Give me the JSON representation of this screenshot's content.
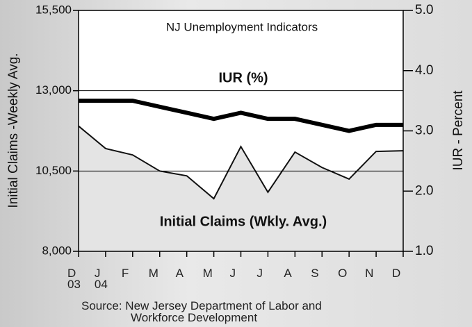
{
  "chart_data": {
    "type": "line",
    "title": "NJ Unemployment Indicators",
    "ylabel": "Initial Claims -Weekly Avg.",
    "y2label": "IUR - Percent",
    "annotations": [
      "IUR (%)",
      "Initial Claims (Wkly. Avg.)"
    ],
    "source": [
      "Source: New Jersey Department of Labor and",
      "Workforce Development"
    ],
    "categories": [
      "D\n03",
      "J\n04",
      "F",
      "M",
      "A",
      "M",
      "J",
      "J",
      "A",
      "S",
      "O",
      "N",
      "D"
    ],
    "series": [
      {
        "name": "Initial Claims (Wkly. Avg.)",
        "color": "#111111",
        "fill": "#e4e4e4",
        "values": [
          11900,
          11200,
          11000,
          10500,
          10350,
          9640,
          11260,
          9840,
          11090,
          10610,
          10250,
          11110,
          11130
        ]
      },
      {
        "name": "IUR (%)",
        "color": "#000000",
        "axis": "y2",
        "values": [
          3.5,
          3.5,
          3.5,
          3.4,
          3.3,
          3.2,
          3.3,
          3.2,
          3.2,
          3.1,
          3.0,
          3.1,
          3.1
        ]
      }
    ],
    "ylim": [
      8000,
      15500
    ],
    "yticks": [
      {
        "value": 8000,
        "label": "8,000"
      },
      {
        "value": 10500,
        "label": "10,500"
      },
      {
        "value": 13000,
        "label": "13,000"
      },
      {
        "value": 15500,
        "label": "15,500"
      }
    ],
    "y2lim": [
      1,
      5
    ],
    "y2ticks": [
      {
        "value": 1,
        "label": "1.0"
      },
      {
        "value": 2,
        "label": "2.0"
      },
      {
        "value": 3,
        "label": "3.0"
      },
      {
        "value": 4,
        "label": "4.0"
      },
      {
        "value": 5,
        "label": "5.0"
      }
    ],
    "grid": true
  }
}
